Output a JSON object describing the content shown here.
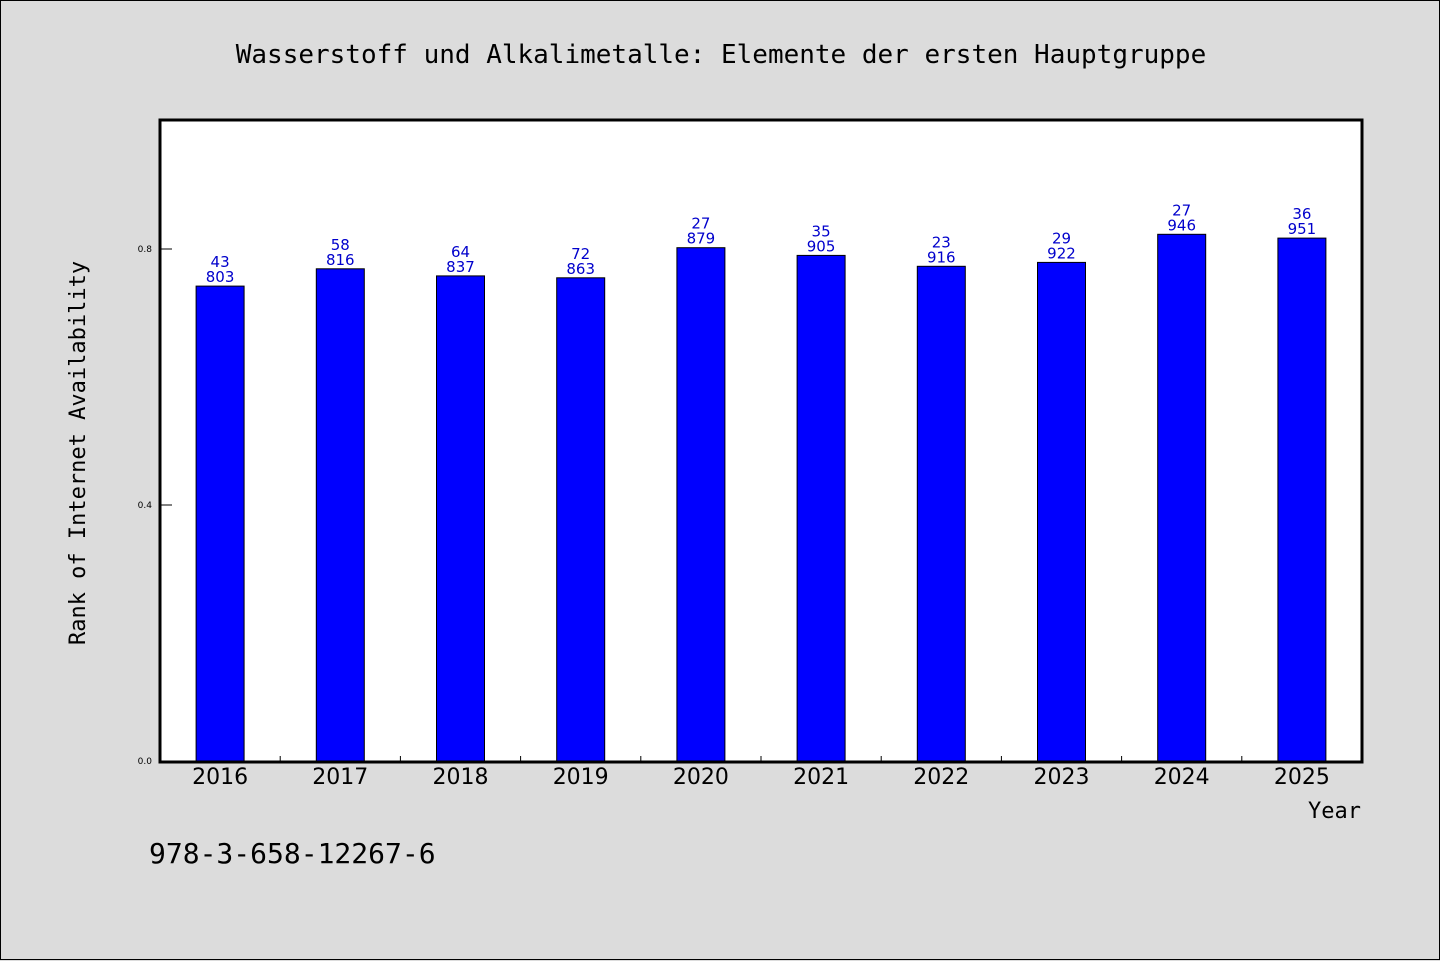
{
  "chart_data": {
    "type": "bar",
    "title": "Wasserstoff und Alkalimetalle: Elemente der ersten Hauptgruppe",
    "xlabel": "Year",
    "ylabel": "Rank of Internet Availability",
    "categories": [
      "2016",
      "2017",
      "2018",
      "2019",
      "2020",
      "2021",
      "2022",
      "2023",
      "2024",
      "2025"
    ],
    "values": [
      0.742,
      0.769,
      0.758,
      0.755,
      0.802,
      0.79,
      0.773,
      0.779,
      0.823,
      0.817
    ],
    "labels_top": [
      "43",
      "58",
      "64",
      "72",
      "27",
      "35",
      "23",
      "29",
      "27",
      "36"
    ],
    "labels_bottom": [
      "803",
      "816",
      "837",
      "863",
      "879",
      "905",
      "916",
      "922",
      "946",
      "951"
    ],
    "ylim": [
      0,
      1.0
    ],
    "yticks": [
      0.0,
      0.4,
      0.8
    ],
    "ytick_labels": [
      "0.0",
      "0.4",
      "0.8"
    ],
    "grid": false,
    "bar_color": "#0000ff",
    "label_color": "#0000cc"
  },
  "footer": {
    "isbn": "978-3-658-12267-6"
  }
}
